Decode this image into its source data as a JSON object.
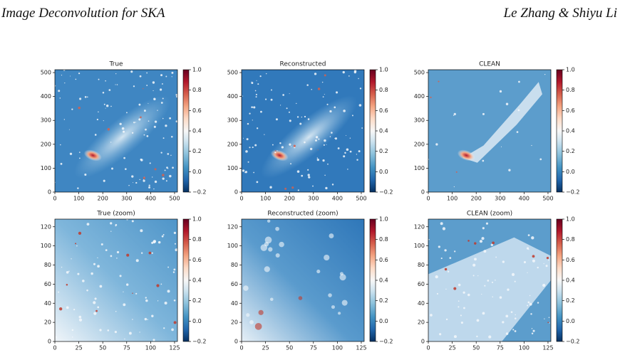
{
  "header": {
    "left": "Image Deconvolution for SKA",
    "right": "Le Zhang & Shiyu Li"
  },
  "figure": {
    "panels": [
      {
        "title": "True",
        "xlim": [
          0,
          512
        ],
        "ylim": [
          0,
          512
        ],
        "xticks": [
          0,
          100,
          200,
          300,
          400,
          500
        ],
        "yticks": [
          0,
          100,
          200,
          300,
          400,
          500
        ],
        "clim": [
          -0.2,
          1
        ],
        "cticks": [
          {
            "value": -0.2,
            "label": "−0.2"
          },
          {
            "value": 0,
            "label": "0.0"
          },
          0.2,
          0.4,
          0.6,
          0.8,
          {
            "value": 1,
            "label": "1.0"
          }
        ]
      },
      {
        "title": "Reconstructed",
        "xlim": [
          0,
          512
        ],
        "ylim": [
          0,
          512
        ],
        "xticks": [
          0,
          100,
          200,
          300,
          400,
          500
        ],
        "yticks": [
          0,
          100,
          200,
          300,
          400,
          500
        ],
        "clim": [
          -0.2,
          1
        ],
        "cticks": [
          {
            "value": -0.2,
            "label": "−0.2"
          },
          {
            "value": 0,
            "label": "0.0"
          },
          0.2,
          0.4,
          0.6,
          0.8,
          {
            "value": 1,
            "label": "1.0"
          }
        ]
      },
      {
        "title": "CLEAN",
        "xlim": [
          0,
          512
        ],
        "ylim": [
          0,
          512
        ],
        "xticks": [
          0,
          100,
          200,
          300,
          400,
          500
        ],
        "yticks": [
          0,
          100,
          200,
          300,
          400,
          500
        ],
        "clim": [
          -0.2,
          1
        ],
        "cticks": [
          {
            "value": -0.2,
            "label": "−0.2"
          },
          {
            "value": 0,
            "label": "0.0"
          },
          0.2,
          0.4,
          0.6,
          0.8,
          {
            "value": 1,
            "label": "1.0"
          }
        ]
      },
      {
        "title": "True (zoom)",
        "xlim": [
          0,
          128
        ],
        "ylim": [
          0,
          128
        ],
        "xticks": [
          0,
          25,
          50,
          75,
          100,
          125
        ],
        "yticks": [
          0,
          20,
          40,
          60,
          80,
          100,
          120
        ],
        "clim": [
          -0.2,
          1
        ],
        "cticks": [
          {
            "value": -0.2,
            "label": "−0.2"
          },
          {
            "value": 0,
            "label": "0.0"
          },
          0.2,
          0.4,
          0.6,
          0.8,
          {
            "value": 1,
            "label": "1.0"
          }
        ]
      },
      {
        "title": "Reconstructed (zoom)",
        "xlim": [
          0,
          128
        ],
        "ylim": [
          0,
          128
        ],
        "xticks": [
          0,
          25,
          50,
          75,
          100,
          125
        ],
        "yticks": [
          0,
          20,
          40,
          60,
          80,
          100,
          120
        ],
        "clim": [
          -0.2,
          1
        ],
        "cticks": [
          {
            "value": -0.2,
            "label": "−0.2"
          },
          {
            "value": 0,
            "label": "0.0"
          },
          0.2,
          0.4,
          0.6,
          0.8,
          {
            "value": 1,
            "label": "1.0"
          }
        ]
      },
      {
        "title": "CLEAN (zoom)",
        "xlim": [
          0,
          128
        ],
        "ylim": [
          0,
          128
        ],
        "xticks": [
          0,
          25,
          50,
          75,
          100,
          125
        ],
        "yticks": [
          0,
          20,
          40,
          60,
          80,
          100,
          120
        ],
        "clim": [
          -0.2,
          1
        ],
        "cticks": [
          {
            "value": -0.2,
            "label": "−0.2"
          },
          {
            "value": 0,
            "label": "0.0"
          },
          0.2,
          0.4,
          0.6,
          0.8,
          {
            "value": 1,
            "label": "1.0"
          }
        ]
      }
    ]
  }
}
